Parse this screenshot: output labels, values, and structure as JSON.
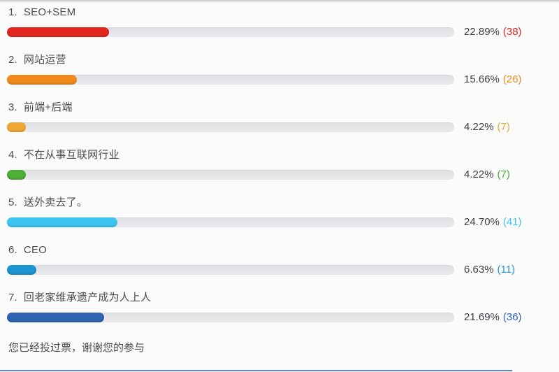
{
  "poll": {
    "options": [
      {
        "index": "1.",
        "label": "SEO+SEM",
        "percent": "22.89%",
        "count": "(38)",
        "value": 22.89,
        "color": "#e0261f"
      },
      {
        "index": "2.",
        "label": "网站运营",
        "percent": "15.66%",
        "count": "(26)",
        "value": 15.66,
        "color": "#f08a1d"
      },
      {
        "index": "3.",
        "label": "前端+后端",
        "percent": "4.22%",
        "count": "(7)",
        "value": 4.22,
        "color": "#efa735"
      },
      {
        "index": "4.",
        "label": "不在从事互联网行业",
        "percent": "4.22%",
        "count": "(7)",
        "value": 4.22,
        "color": "#4fae38"
      },
      {
        "index": "5.",
        "label": "送外卖去了。",
        "percent": "24.70%",
        "count": "(41)",
        "value": 24.7,
        "color": "#3ec4f2"
      },
      {
        "index": "6.",
        "label": "CEO",
        "percent": "6.63%",
        "count": "(11)",
        "value": 6.63,
        "color": "#1e94d2"
      },
      {
        "index": "7.",
        "label": "回老家维承遗产成为人上人",
        "percent": "21.69%",
        "count": "(36)",
        "value": 21.69,
        "color": "#2d63b2"
      }
    ],
    "footer": "您已经投过票，谢谢您的参与"
  },
  "chart_data": {
    "type": "bar",
    "orientation": "horizontal",
    "categories": [
      "SEO+SEM",
      "网站运营",
      "前端+后端",
      "不在从事互联网行业",
      "送外卖去了。",
      "CEO",
      "回老家维承遗产成为人上人"
    ],
    "values": [
      22.89,
      15.66,
      4.22,
      4.22,
      24.7,
      6.63,
      21.69
    ],
    "counts": [
      38,
      26,
      7,
      7,
      41,
      11,
      36
    ],
    "value_labels": [
      "22.89% (38)",
      "15.66% (26)",
      "4.22% (7)",
      "4.22% (7)",
      "24.70% (41)",
      "6.63% (11)",
      "21.69% (36)"
    ],
    "bar_colors": [
      "#e0261f",
      "#f08a1d",
      "#efa735",
      "#4fae38",
      "#3ec4f2",
      "#1e94d2",
      "#2d63b2"
    ],
    "title": "",
    "xlabel": "",
    "ylabel": "",
    "xlim": [
      0,
      100
    ],
    "grid": false,
    "legend": false,
    "annotation": "您已经投过票，谢谢您的参与"
  }
}
